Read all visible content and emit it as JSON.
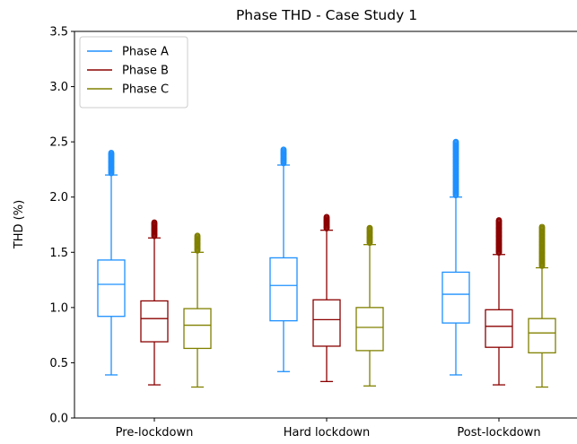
{
  "chart_data": {
    "type": "box",
    "title": "Phase THD - Case Study 1",
    "xlabel": "",
    "ylabel": "THD (%)",
    "ylim": [
      0.0,
      3.5
    ],
    "yticks": [
      "0.0",
      "0.5",
      "1.0",
      "1.5",
      "2.0",
      "2.5",
      "3.0",
      "3.5"
    ],
    "ytick_values": [
      0.0,
      0.5,
      1.0,
      1.5,
      2.0,
      2.5,
      3.0,
      3.5
    ],
    "categories": [
      "Pre-lockdown",
      "Hard lockdown",
      "Post-lockdown"
    ],
    "grid": false,
    "legend_position": "top-left",
    "series": [
      {
        "name": "Phase A",
        "color": "#1e90ff",
        "boxes": [
          {
            "whisker_low": 0.39,
            "q1": 0.92,
            "median": 1.21,
            "q3": 1.43,
            "whisker_high": 2.2,
            "outlier_max": 2.4
          },
          {
            "whisker_low": 0.42,
            "q1": 0.88,
            "median": 1.2,
            "q3": 1.45,
            "whisker_high": 2.29,
            "outlier_max": 2.43
          },
          {
            "whisker_low": 0.39,
            "q1": 0.86,
            "median": 1.12,
            "q3": 1.32,
            "whisker_high": 2.0,
            "outlier_max": 2.5
          }
        ]
      },
      {
        "name": "Phase B",
        "color": "#8b0000",
        "boxes": [
          {
            "whisker_low": 0.3,
            "q1": 0.69,
            "median": 0.9,
            "q3": 1.06,
            "whisker_high": 1.63,
            "outlier_max": 1.77
          },
          {
            "whisker_low": 0.33,
            "q1": 0.65,
            "median": 0.89,
            "q3": 1.07,
            "whisker_high": 1.7,
            "outlier_max": 1.82
          },
          {
            "whisker_low": 0.3,
            "q1": 0.64,
            "median": 0.83,
            "q3": 0.98,
            "whisker_high": 1.48,
            "outlier_max": 1.79
          }
        ]
      },
      {
        "name": "Phase C",
        "color": "#808000",
        "boxes": [
          {
            "whisker_low": 0.28,
            "q1": 0.63,
            "median": 0.84,
            "q3": 0.99,
            "whisker_high": 1.5,
            "outlier_max": 1.65
          },
          {
            "whisker_low": 0.29,
            "q1": 0.61,
            "median": 0.82,
            "q3": 1.0,
            "whisker_high": 1.57,
            "outlier_max": 1.72
          },
          {
            "whisker_low": 0.28,
            "q1": 0.59,
            "median": 0.77,
            "q3": 0.9,
            "whisker_high": 1.36,
            "outlier_max": 1.73
          }
        ]
      }
    ]
  }
}
